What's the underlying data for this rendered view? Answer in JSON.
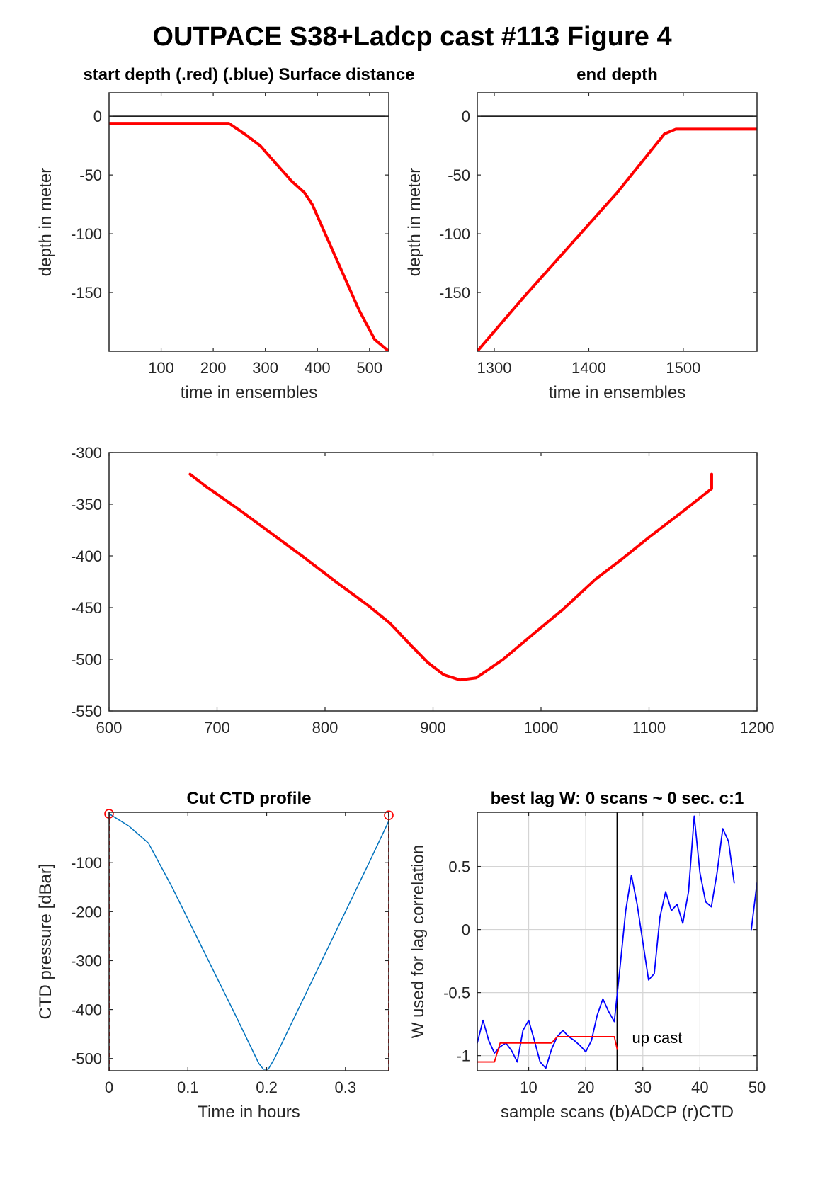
{
  "figure": {
    "title": "OUTPACE S38+Ladcp cast #113   Figure 4"
  },
  "chart_data": [
    {
      "id": "start",
      "type": "line",
      "title": "start depth (.red) (.blue) Surface distance",
      "xlabel": "time in ensembles",
      "ylabel": "depth in meter",
      "xlim": [
        0,
        537
      ],
      "ylim": [
        -200,
        20
      ],
      "xticks": [
        100,
        200,
        300,
        400,
        500
      ],
      "yticks": [
        0,
        -50,
        -100,
        -150
      ],
      "grid": false,
      "series": [
        {
          "color": "#ff0000",
          "width": 4,
          "points": [
            [
              0,
              -6
            ],
            [
              230,
              -6
            ],
            [
              260,
              -15
            ],
            [
              290,
              -25
            ],
            [
              320,
              -40
            ],
            [
              350,
              -55
            ],
            [
              375,
              -65
            ],
            [
              390,
              -75
            ],
            [
              420,
              -105
            ],
            [
              450,
              -135
            ],
            [
              480,
              -165
            ],
            [
              510,
              -190
            ],
            [
              537,
              -200
            ]
          ]
        },
        {
          "color": "#000000",
          "width": 1.5,
          "points": [
            [
              0,
              0
            ],
            [
              537,
              0
            ]
          ]
        }
      ]
    },
    {
      "id": "end",
      "type": "line",
      "title": "end depth",
      "xlabel": "time in ensembles",
      "ylabel": "depth in meter",
      "xlim": [
        1282,
        1578
      ],
      "ylim": [
        -200,
        20
      ],
      "xticks": [
        1300,
        1400,
        1500
      ],
      "yticks": [
        0,
        -50,
        -100,
        -150
      ],
      "grid": false,
      "series": [
        {
          "color": "#ff0000",
          "width": 4,
          "points": [
            [
              1282,
              -200
            ],
            [
              1330,
              -155
            ],
            [
              1380,
              -110
            ],
            [
              1430,
              -65
            ],
            [
              1465,
              -30
            ],
            [
              1480,
              -15
            ],
            [
              1492,
              -11
            ],
            [
              1578,
              -11
            ]
          ]
        },
        {
          "color": "#000000",
          "width": 1.5,
          "points": [
            [
              1282,
              0
            ],
            [
              1578,
              0
            ]
          ]
        }
      ]
    },
    {
      "id": "middle",
      "type": "line",
      "title": "",
      "xlabel": "",
      "ylabel": "",
      "xlim": [
        600,
        1200
      ],
      "ylim": [
        -550,
        -300
      ],
      "xticks": [
        600,
        700,
        800,
        900,
        1000,
        1100,
        1200
      ],
      "yticks": [
        -300,
        -350,
        -400,
        -450,
        -500,
        -550
      ],
      "grid": false,
      "series": [
        {
          "color": "#ff0000",
          "width": 4,
          "points": [
            [
              675,
              -321
            ],
            [
              690,
              -333
            ],
            [
              720,
              -355
            ],
            [
              750,
              -378
            ],
            [
              780,
              -401
            ],
            [
              810,
              -425
            ],
            [
              840,
              -448
            ],
            [
              860,
              -465
            ],
            [
              880,
              -487
            ],
            [
              895,
              -503
            ],
            [
              910,
              -515
            ],
            [
              925,
              -520
            ],
            [
              940,
              -518
            ],
            [
              965,
              -500
            ],
            [
              990,
              -478
            ],
            [
              1020,
              -452
            ],
            [
              1050,
              -423
            ],
            [
              1075,
              -403
            ],
            [
              1100,
              -382
            ],
            [
              1130,
              -358
            ],
            [
              1158,
              -335
            ],
            [
              1158,
              -321
            ]
          ]
        }
      ]
    },
    {
      "id": "ctd",
      "type": "line",
      "title": "Cut CTD profile",
      "xlabel": "Time in hours",
      "ylabel": "CTD pressure [dBar]",
      "xlim": [
        0,
        0.355
      ],
      "ylim": [
        -525,
        3
      ],
      "xticks": [
        0,
        0.1,
        0.2,
        0.3
      ],
      "xticklabels": [
        "0",
        "0.1",
        "0.2",
        "0.3"
      ],
      "yticks": [
        -100,
        -200,
        -300,
        -400,
        -500
      ],
      "grid": false,
      "series": [
        {
          "color": "#0072bd",
          "width": 1.5,
          "points": [
            [
              0,
              0
            ],
            [
              0.025,
              -25
            ],
            [
              0.05,
              -60
            ],
            [
              0.08,
              -150
            ],
            [
              0.12,
              -280
            ],
            [
              0.16,
              -410
            ],
            [
              0.19,
              -510
            ],
            [
              0.196,
              -522
            ],
            [
              0.202,
              -522
            ],
            [
              0.21,
              -500
            ],
            [
              0.24,
              -400
            ],
            [
              0.27,
              -300
            ],
            [
              0.3,
              -200
            ],
            [
              0.33,
              -100
            ],
            [
              0.355,
              -15
            ]
          ]
        }
      ],
      "cut_lines": {
        "color": "#ff0000",
        "x": [
          0,
          0.355
        ]
      },
      "cut_markers": {
        "color": "#ff0000",
        "points": [
          [
            0,
            0
          ],
          [
            0.355,
            -3
          ]
        ]
      }
    },
    {
      "id": "lag",
      "type": "line",
      "title": "best lag W: 0 scans ~ 0 sec.  c:1",
      "xlabel": "sample scans (b)ADCP (r)CTD",
      "ylabel": "W used for lag correlation",
      "xlim": [
        1,
        50
      ],
      "ylim": [
        -1.12,
        0.93
      ],
      "xticks": [
        10,
        20,
        30,
        40,
        50
      ],
      "yticks": [
        0.5,
        0,
        -0.5,
        -1
      ],
      "yticklabels": [
        "0.5",
        "0",
        "-0.5",
        "-1"
      ],
      "grid": true,
      "annotation": "up cast",
      "annotation_pos": [
        32.5,
        -0.9
      ],
      "vline": {
        "x": 25.5,
        "color": "#000000"
      },
      "series": [
        {
          "name": "ADCP",
          "color": "#0000ff",
          "width": 1.8,
          "segments": [
            [
              [
                1,
                -0.9
              ],
              [
                2,
                -0.72
              ],
              [
                3,
                -0.88
              ],
              [
                4,
                -0.98
              ],
              [
                5,
                -0.93
              ],
              [
                6,
                -0.9
              ],
              [
                7,
                -0.96
              ],
              [
                8,
                -1.05
              ],
              [
                9,
                -0.8
              ],
              [
                10,
                -0.72
              ],
              [
                11,
                -0.88
              ],
              [
                12,
                -1.05
              ],
              [
                13,
                -1.1
              ],
              [
                14,
                -0.95
              ],
              [
                15,
                -0.85
              ],
              [
                16,
                -0.8
              ],
              [
                17,
                -0.85
              ],
              [
                18,
                -0.88
              ],
              [
                19,
                -0.92
              ],
              [
                20,
                -0.97
              ],
              [
                21,
                -0.88
              ],
              [
                22,
                -0.68
              ],
              [
                23,
                -0.55
              ],
              [
                24,
                -0.65
              ],
              [
                25,
                -0.73
              ],
              [
                26,
                -0.3
              ],
              [
                27,
                0.15
              ],
              [
                28,
                0.43
              ],
              [
                29,
                0.2
              ],
              [
                30,
                -0.1
              ],
              [
                31,
                -0.4
              ],
              [
                32,
                -0.35
              ],
              [
                33,
                0.1
              ],
              [
                34,
                0.3
              ],
              [
                35,
                0.15
              ],
              [
                36,
                0.2
              ],
              [
                37,
                0.05
              ],
              [
                38,
                0.3
              ],
              [
                39,
                0.9
              ],
              [
                40,
                0.45
              ],
              [
                41,
                0.22
              ],
              [
                42,
                0.18
              ],
              [
                43,
                0.45
              ],
              [
                44,
                0.8
              ],
              [
                45,
                0.7
              ],
              [
                46,
                0.37
              ]
            ],
            [
              [
                49,
                0.0
              ],
              [
                50,
                0.37
              ]
            ]
          ]
        },
        {
          "name": "CTD",
          "color": "#ff0000",
          "width": 1.8,
          "segments": [
            [
              [
                1,
                -1.05
              ],
              [
                4,
                -1.05
              ],
              [
                5,
                -0.9
              ],
              [
                14,
                -0.9
              ],
              [
                15,
                -0.85
              ],
              [
                25,
                -0.85
              ],
              [
                25.5,
                -0.95
              ]
            ]
          ]
        }
      ]
    }
  ]
}
